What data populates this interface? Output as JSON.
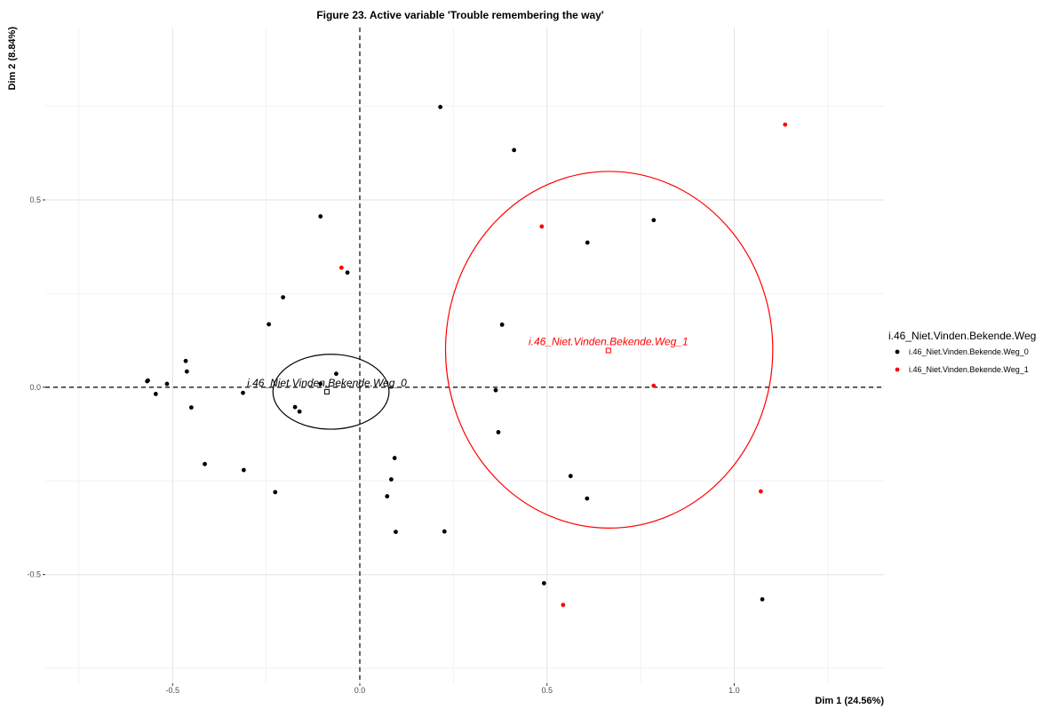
{
  "chart_data": {
    "type": "scatter",
    "title": "Figure 23. Active variable 'Trouble remembering the way'",
    "xlabel": "Dim 1 (24.56%)",
    "ylabel": "Dim 2 (8.84%)",
    "xlim": [
      -0.84,
      1.4
    ],
    "ylim": [
      -0.79,
      0.96
    ],
    "x_ticks": [
      -0.5,
      0.0,
      0.5,
      1.0
    ],
    "x_tick_labels": [
      "-0.5",
      "0.0",
      "0.5",
      "1.0"
    ],
    "y_ticks": [
      -0.5,
      0.0,
      0.5
    ],
    "y_tick_labels": [
      "-0.5",
      "0.0",
      "0.5"
    ],
    "x_minor_grid": [
      -0.75,
      -0.25,
      0.25,
      0.75,
      1.25
    ],
    "y_minor_grid": [
      -0.75,
      -0.25,
      0.25,
      0.75
    ],
    "grid": true,
    "reference_lines": {
      "x": 0,
      "y": 0,
      "style": "dashed"
    },
    "legend": {
      "title": "i.46_Niet.Vinden.Bekende.Weg",
      "position": "right",
      "entries": [
        {
          "label": "i.46_Niet.Vinden.Bekende.Weg_0",
          "color": "#000000"
        },
        {
          "label": "i.46_Niet.Vinden.Bekende.Weg_1",
          "color": "#ff0000"
        }
      ]
    },
    "series": [
      {
        "name": "i.46_Niet.Vinden.Bekende.Weg_0",
        "color": "#000000",
        "points": [
          [
            0.215,
            0.748
          ],
          [
            0.412,
            0.633
          ],
          [
            -0.105,
            0.456
          ],
          [
            0.785,
            0.446
          ],
          [
            0.608,
            0.386
          ],
          [
            -0.033,
            0.306
          ],
          [
            -0.205,
            0.24
          ],
          [
            -0.243,
            0.168
          ],
          [
            0.38,
            0.167
          ],
          [
            -0.465,
            0.07
          ],
          [
            -0.462,
            0.042
          ],
          [
            -0.063,
            0.036
          ],
          [
            -0.566,
            0.018
          ],
          [
            -0.568,
            0.016
          ],
          [
            -0.515,
            0.009
          ],
          [
            -0.105,
            0.009
          ],
          [
            -0.545,
            -0.018
          ],
          [
            -0.312,
            -0.015
          ],
          [
            0.363,
            -0.008
          ],
          [
            -0.173,
            -0.053
          ],
          [
            -0.45,
            -0.054
          ],
          [
            -0.161,
            -0.065
          ],
          [
            0.37,
            -0.12
          ],
          [
            0.093,
            -0.189
          ],
          [
            -0.414,
            -0.205
          ],
          [
            -0.31,
            -0.221
          ],
          [
            0.563,
            -0.237
          ],
          [
            0.084,
            -0.246
          ],
          [
            -0.226,
            -0.28
          ],
          [
            0.607,
            -0.297
          ],
          [
            0.073,
            -0.291
          ],
          [
            0.096,
            -0.386
          ],
          [
            0.226,
            -0.385
          ],
          [
            0.492,
            -0.523
          ],
          [
            1.075,
            -0.566
          ]
        ]
      },
      {
        "name": "i.46_Niet.Vinden.Bekende.Weg_1",
        "color": "#ff0000",
        "points": [
          [
            1.136,
            0.701
          ],
          [
            0.486,
            0.429
          ],
          [
            -0.049,
            0.319
          ],
          [
            0.785,
            0.004
          ],
          [
            1.071,
            -0.278
          ],
          [
            0.543,
            -0.581
          ]
        ]
      }
    ],
    "centroids": [
      {
        "label": "i.46_Niet.Vinden.Bekende.Weg_0",
        "color": "#000000",
        "x": -0.088,
        "y": -0.012,
        "ellipse": {
          "cx": -0.077,
          "cy": -0.012,
          "rx": 0.155,
          "ry": 0.1
        }
      },
      {
        "label": "i.46_Niet.Vinden.Bekende.Weg_1",
        "color": "#ff0000",
        "x": 0.664,
        "y": 0.098,
        "ellipse": {
          "cx": 0.666,
          "cy": 0.1,
          "rx": 0.437,
          "ry": 0.476
        }
      }
    ]
  }
}
